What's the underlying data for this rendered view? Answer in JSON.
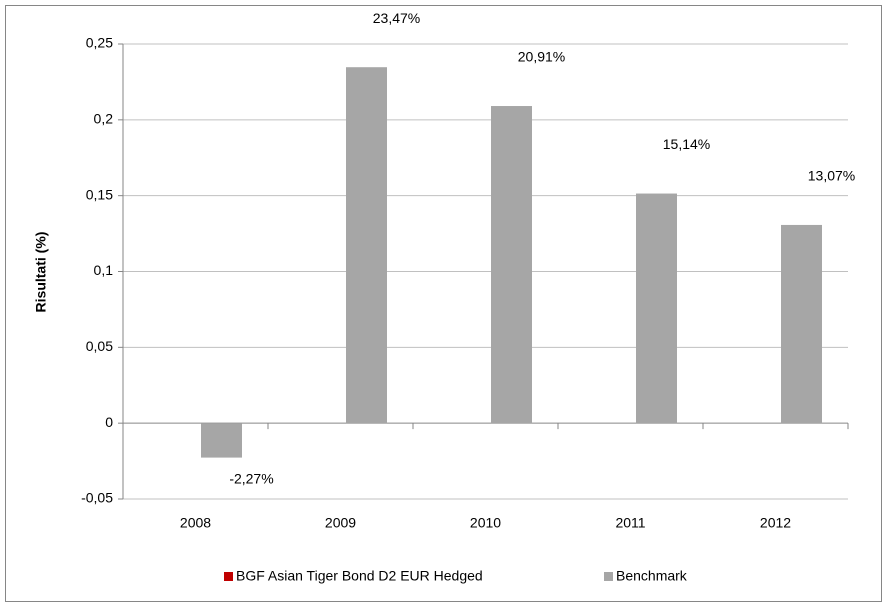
{
  "chart_data": {
    "type": "bar",
    "y_label": "Risultati (%)",
    "categories": [
      "2008",
      "2009",
      "2010",
      "2011",
      "2012"
    ],
    "series": [
      {
        "name": "BGF Asian Tiger Bond D2 EUR Hedged",
        "color": "#c00000",
        "values": [
          null,
          null,
          null,
          null,
          null
        ]
      },
      {
        "name": "Benchmark",
        "color": "#a6a6a6",
        "values": [
          -0.0227,
          0.2347,
          0.2091,
          0.1514,
          0.1307
        ],
        "value_labels": [
          "-2,27%",
          "23,47%",
          "20,91%",
          "15,14%",
          "13,07%"
        ]
      }
    ],
    "ylim": [
      -0.05,
      0.25
    ],
    "yticks": [
      {
        "value": -0.05,
        "label": "-0,05"
      },
      0,
      {
        "value": 0.05,
        "label": "0,05"
      },
      {
        "value": 0.1,
        "label": "0,1"
      },
      {
        "value": 0.15,
        "label": "0,15"
      },
      {
        "value": 0.2,
        "label": "0,2"
      },
      {
        "value": 0.25,
        "label": "0,25"
      }
    ],
    "grid": true,
    "legend": "bottom"
  }
}
